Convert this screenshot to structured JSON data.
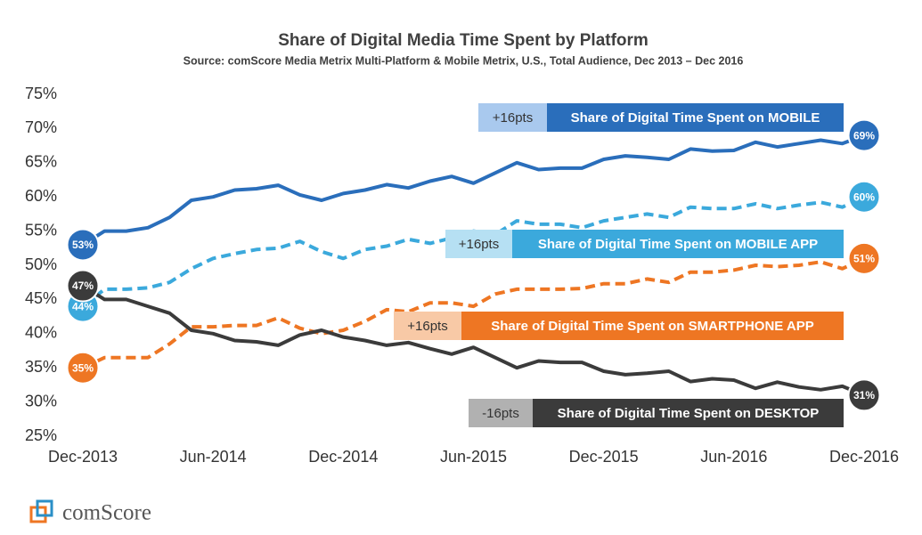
{
  "chart_data": {
    "type": "line",
    "title": "Share of Digital Media Time Spent by Platform",
    "subtitle": "Source: comScore Media Metrix Multi-Platform & Mobile Metrix, U.S., Total Audience, Dec 2013 – Dec 2016",
    "logo": "comScore",
    "categories": [
      "Dec-2013",
      null,
      null,
      null,
      null,
      null,
      "Jun-2014",
      null,
      null,
      null,
      null,
      null,
      "Dec-2014",
      null,
      null,
      null,
      null,
      null,
      "Jun-2015",
      null,
      null,
      null,
      null,
      null,
      "Dec-2015",
      null,
      null,
      null,
      null,
      null,
      "Jun-2016",
      null,
      null,
      null,
      null,
      null,
      "Dec-2016"
    ],
    "ylim": [
      25,
      75
    ],
    "yticks": [
      {
        "value": 25,
        "label": "25%"
      },
      {
        "value": 30,
        "label": "30%"
      },
      {
        "value": 35,
        "label": "35%"
      },
      {
        "value": 40,
        "label": "40%"
      },
      {
        "value": 45,
        "label": "45%"
      },
      {
        "value": 50,
        "label": "50%"
      },
      {
        "value": 55,
        "label": "55%"
      },
      {
        "value": 60,
        "label": "60%"
      },
      {
        "value": 65,
        "label": "65%"
      },
      {
        "value": 70,
        "label": "70%"
      },
      {
        "value": 75,
        "label": "75%"
      }
    ],
    "grid": false,
    "series": [
      {
        "name": "Share of Digital Time Spent on MOBILE",
        "change": "+16pts",
        "color": "#2a6ebb",
        "badge_color": "#a9c9ee",
        "dashed": false,
        "values": [
          53,
          55,
          55,
          55.5,
          57,
          59.5,
          60,
          61,
          61.2,
          61.7,
          60.3,
          59.5,
          60.5,
          61,
          61.8,
          61.3,
          62.3,
          63,
          62,
          63.5,
          65,
          64,
          64.2,
          64.2,
          65.5,
          66,
          65.8,
          65.5,
          67,
          66.7,
          66.8,
          68,
          67.3,
          67.8,
          68.3,
          67.8,
          69
        ],
        "value_labels": [
          "53%",
          null,
          null,
          null,
          null,
          null,
          null,
          null,
          null,
          null,
          null,
          null,
          null,
          null,
          null,
          null,
          null,
          null,
          null,
          null,
          null,
          null,
          null,
          null,
          null,
          null,
          null,
          null,
          null,
          null,
          null,
          null,
          null,
          null,
          null,
          null,
          "69%"
        ]
      },
      {
        "name": "Share of Digital Time Spent on MOBILE APP",
        "change": "+16pts",
        "color": "#3ba9dc",
        "badge_color": "#b6e0f3",
        "dashed": true,
        "values": [
          44,
          46.5,
          46.5,
          46.7,
          47.5,
          49.5,
          51,
          51.7,
          52.3,
          52.5,
          53.5,
          52,
          51,
          52.3,
          52.8,
          53.8,
          53.2,
          54,
          55,
          54.5,
          56.5,
          56,
          56,
          55.5,
          56.5,
          57,
          57.5,
          57,
          58.5,
          58.3,
          58.3,
          59,
          58.3,
          58.8,
          59.2,
          58.5,
          60
        ],
        "value_labels": [
          "44%",
          null,
          null,
          null,
          null,
          null,
          null,
          null,
          null,
          null,
          null,
          null,
          null,
          null,
          null,
          null,
          null,
          null,
          null,
          null,
          null,
          null,
          null,
          null,
          null,
          null,
          null,
          null,
          null,
          null,
          null,
          null,
          null,
          null,
          null,
          null,
          "60%"
        ]
      },
      {
        "name": "Share of Digital Time Spent on SMARTPHONE APP",
        "change": "+16pts",
        "color": "#ee7623",
        "badge_color": "#f8c9a6",
        "dashed": true,
        "values": [
          35,
          36.5,
          36.5,
          36.5,
          38.5,
          41,
          41,
          41.2,
          41.2,
          42.3,
          40.8,
          40,
          40.5,
          41.8,
          43.5,
          43.2,
          44.5,
          44.5,
          44,
          45.8,
          46.5,
          46.5,
          46.5,
          46.6,
          47.3,
          47.3,
          48,
          47.5,
          49,
          49,
          49.3,
          50,
          49.8,
          50,
          50.5,
          49.5,
          51
        ],
        "value_labels": [
          "35%",
          null,
          null,
          null,
          null,
          null,
          null,
          null,
          null,
          null,
          null,
          null,
          null,
          null,
          null,
          null,
          null,
          null,
          null,
          null,
          null,
          null,
          null,
          null,
          null,
          null,
          null,
          null,
          null,
          null,
          null,
          null,
          null,
          null,
          null,
          null,
          "51%"
        ]
      },
      {
        "name": "Share of Digital Time Spent on DESKTOP",
        "change": "-16pts",
        "color": "#3b3b3b",
        "badge_color": "#b1b1b1",
        "dashed": false,
        "values": [
          47,
          45,
          45,
          44,
          43,
          40.5,
          40,
          39,
          38.8,
          38.3,
          39.8,
          40.5,
          39.5,
          39,
          38.3,
          38.7,
          37.8,
          37,
          38,
          36.5,
          35,
          36,
          35.8,
          35.8,
          34.5,
          34,
          34.2,
          34.5,
          33,
          33.4,
          33.2,
          32,
          32.9,
          32.2,
          31.8,
          32.3,
          31
        ],
        "value_labels": [
          "47%",
          null,
          null,
          null,
          null,
          null,
          null,
          null,
          null,
          null,
          null,
          null,
          null,
          null,
          null,
          null,
          null,
          null,
          null,
          null,
          null,
          null,
          null,
          null,
          null,
          null,
          null,
          null,
          null,
          null,
          null,
          null,
          null,
          null,
          null,
          null,
          "31%"
        ]
      }
    ]
  }
}
